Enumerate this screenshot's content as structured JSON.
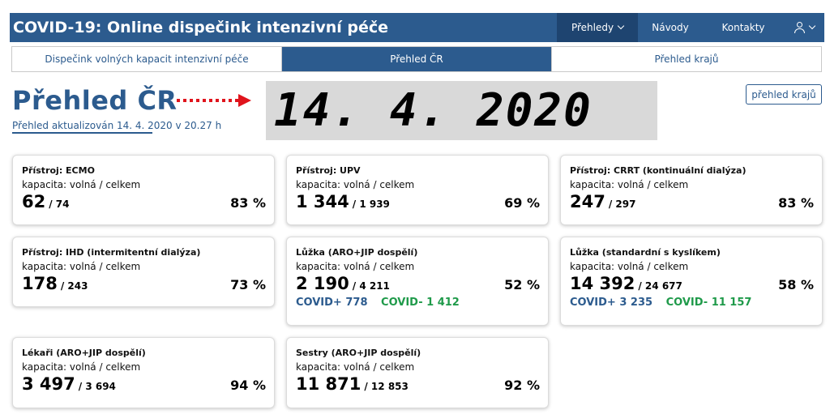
{
  "header": {
    "title": "COVID-19: Online dispečink intenzivní péče",
    "nav": [
      {
        "label": "Přehledy",
        "icon": "chevron-down-icon"
      },
      {
        "label": "Návody"
      },
      {
        "label": "Kontakty"
      }
    ],
    "user_icon": "user-icon"
  },
  "tabs": [
    {
      "label": "Dispečink volných kapacit intenzivní péče"
    },
    {
      "label": "Přehled ČR"
    },
    {
      "label": "Přehled krajů"
    }
  ],
  "page": {
    "title": "Přehled ČR",
    "updated": "Přehled aktualizován 14. 4. 2020 v 20.27 h",
    "date_big": "14. 4. 2020",
    "region_button": "přehled krajů",
    "arrow_color": "#e0141c"
  },
  "cards": [
    {
      "title": "Přístroj: ECMO",
      "sub": "kapacita: volná / celkem",
      "free": "62",
      "total": "/ 74",
      "pct": "83 %"
    },
    {
      "title": "Přístroj: UPV",
      "sub": "kapacita: volná / celkem",
      "free": "1 344",
      "total": "/ 1 939",
      "pct": "69 %"
    },
    {
      "title": "Přístroj: CRRT (kontinuální dialýza)",
      "sub": "kapacita: volná / celkem",
      "free": "247",
      "total": "/ 297",
      "pct": "83 %"
    },
    {
      "title": "Přístroj: IHD (intermitentní dialýza)",
      "sub": "kapacita: volná / celkem",
      "free": "178",
      "total": "/ 243",
      "pct": "73 %"
    },
    {
      "title": "Lůžka (ARO+JIP dospělí)",
      "sub": "kapacita: volná / celkem",
      "free": "2 190",
      "total": "/ 4 211",
      "pct": "52 %",
      "covid_plus": "COVID+ 778",
      "covid_minus": "COVID- 1 412"
    },
    {
      "title": "Lůžka (standardní s kyslíkem)",
      "sub": "kapacita: volná / celkem",
      "free": "14 392",
      "total": "/ 24 677",
      "pct": "58 %",
      "covid_plus": "COVID+ 3 235",
      "covid_minus": "COVID- 11 157"
    },
    {
      "title": "Lékaři (ARO+JIP dospělí)",
      "sub": "kapacita: volná / celkem",
      "free": "3 497",
      "total": "/ 3 694",
      "pct": "94 %"
    },
    {
      "title": "Sestry (ARO+JIP dospělí)",
      "sub": "kapacita: volná / celkem",
      "free": "11 871",
      "total": "/ 12 853",
      "pct": "92 %"
    }
  ]
}
